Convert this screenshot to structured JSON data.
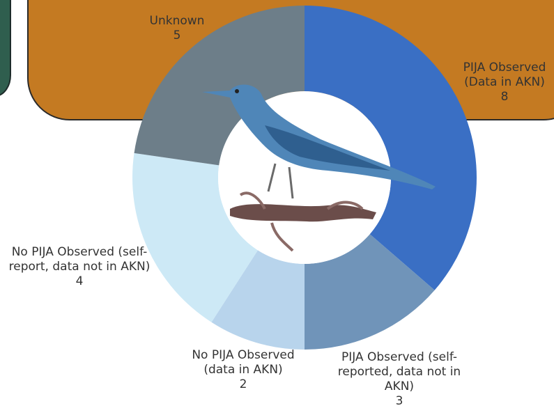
{
  "chart_data": {
    "type": "donut",
    "categories": [
      "PIJA Observed (Data in AKN)",
      "PIJA Observed (self-reported, data not in AKN)",
      "No PIJA Observed (data in AKN)",
      "No PIJA Observed (self-report, data not in AKN)",
      "Unknown"
    ],
    "values": [
      8,
      3,
      2,
      4,
      5
    ],
    "colors": [
      "#3a6fc4",
      "#7094b9",
      "#b8d4ec",
      "#cde9f6",
      "#6d7e89"
    ]
  }
}
